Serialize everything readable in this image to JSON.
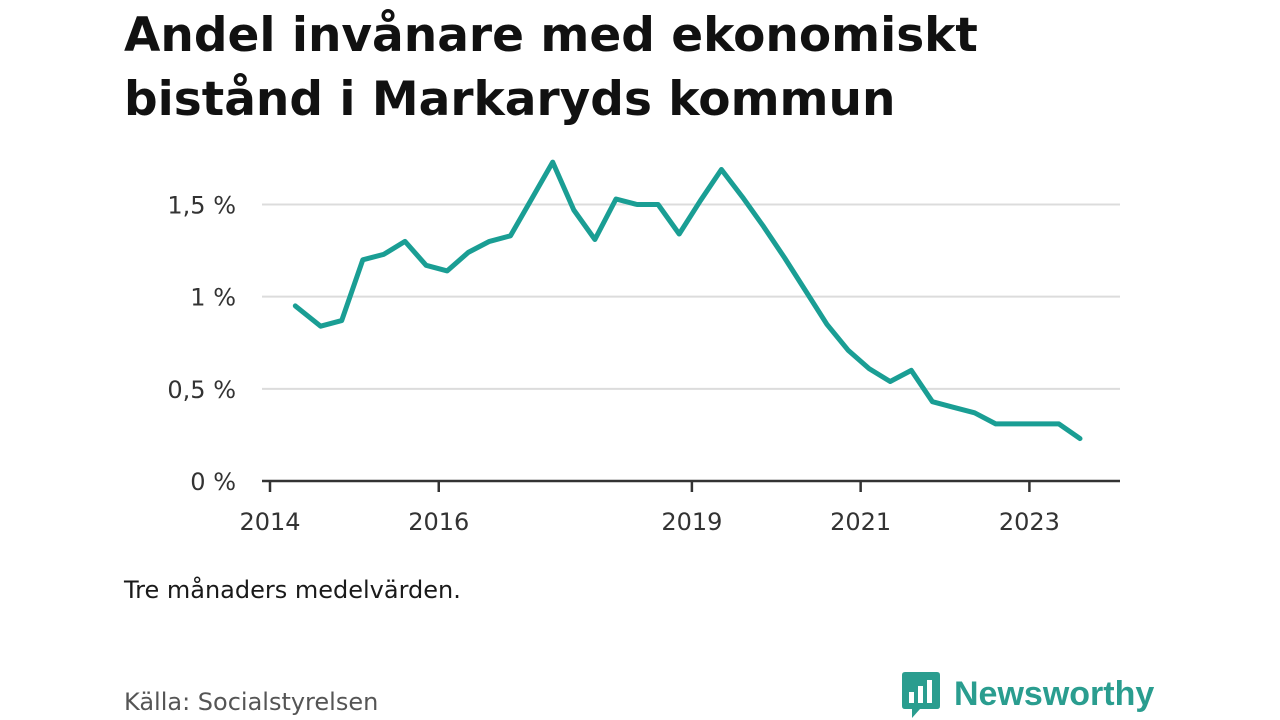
{
  "chart_data": {
    "type": "line",
    "title_lines": [
      "Andel invånare med ekonomiskt",
      "bistånd i Markaryds kommun"
    ],
    "xlabel": "",
    "ylabel": "",
    "y_ticks": [
      {
        "value": 0,
        "label": "0 %"
      },
      {
        "value": 0.5,
        "label": "0,5 %"
      },
      {
        "value": 1,
        "label": "1 %"
      },
      {
        "value": 1.5,
        "label": "1,5 %"
      }
    ],
    "x_ticks": [
      {
        "value": 2014,
        "label": "2014"
      },
      {
        "value": 2016,
        "label": "2016"
      },
      {
        "value": 2019,
        "label": "2019"
      },
      {
        "value": 2021,
        "label": "2021"
      },
      {
        "value": 2023,
        "label": "2023"
      }
    ],
    "xlim": [
      2014,
      2024.05
    ],
    "ylim": [
      0,
      1.85
    ],
    "grid": true,
    "color": "#1a9e94",
    "series": [
      {
        "x": [
          2014.3,
          2014.6,
          2014.85,
          2015.1,
          2015.35,
          2015.6,
          2015.85,
          2016.1,
          2016.35,
          2016.6,
          2016.85,
          2017.1,
          2017.35,
          2017.6,
          2017.85,
          2018.1,
          2018.35,
          2018.6,
          2018.85,
          2019.1,
          2019.35,
          2019.6,
          2019.85,
          2020.1,
          2020.35,
          2020.6,
          2020.85,
          2021.1,
          2021.35,
          2021.6,
          2021.85,
          2022.1,
          2022.35,
          2022.6,
          2022.85,
          2023.1,
          2023.35,
          2023.6
        ],
        "values": [
          0.95,
          0.84,
          0.87,
          1.2,
          1.23,
          1.3,
          1.17,
          1.14,
          1.24,
          1.3,
          1.33,
          1.53,
          1.73,
          1.47,
          1.31,
          1.53,
          1.5,
          1.5,
          1.34,
          1.52,
          1.69,
          1.54,
          1.38,
          1.21,
          1.03,
          0.85,
          0.71,
          0.61,
          0.54,
          0.6,
          0.43,
          0.4,
          0.37,
          0.31,
          0.31,
          0.31,
          0.31,
          0.23
        ]
      }
    ]
  },
  "note": "Tre månaders medelvärden.",
  "source": "Källa: Socialstyrelsen",
  "brand": {
    "name": "Newsworthy",
    "color": "#2a9d8f",
    "icon": "bar-chart-bubble-icon"
  }
}
